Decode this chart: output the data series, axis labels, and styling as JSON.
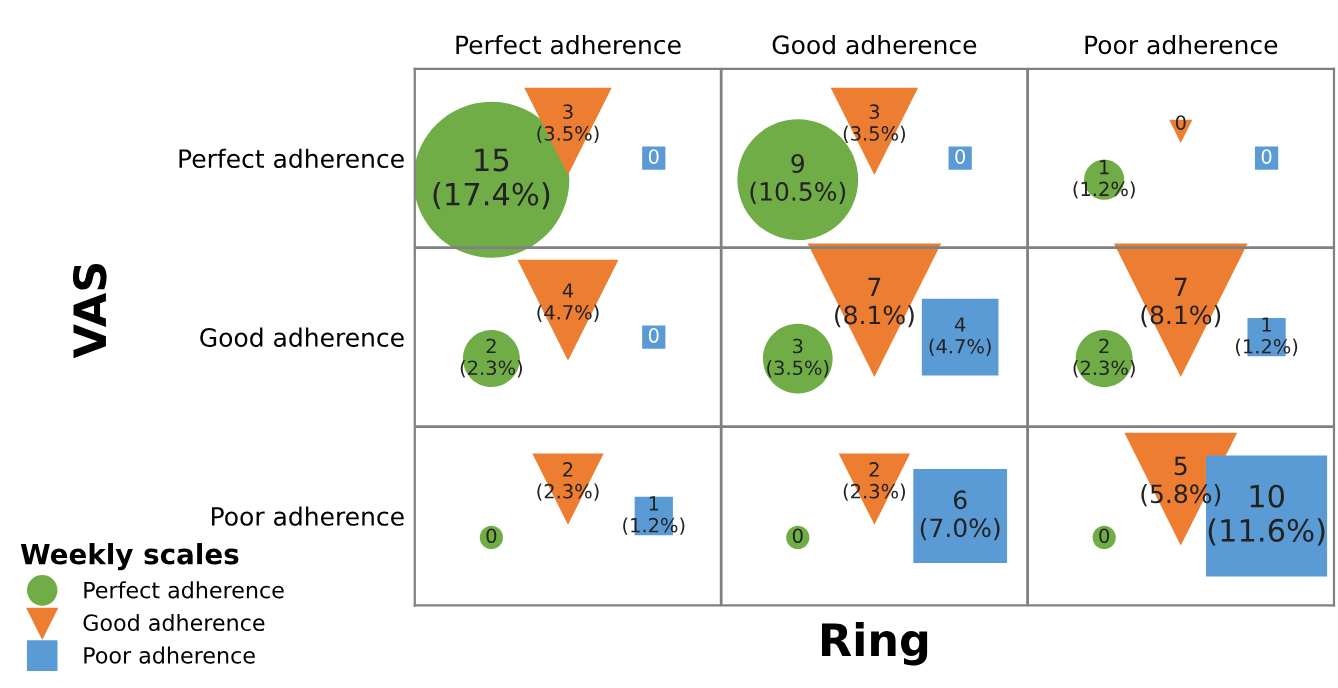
{
  "chart_data": {
    "type": "other",
    "xlabel": "Ring",
    "ylabel": "VAS",
    "legend": "bottom left",
    "legend_title": "Weekly scales",
    "categories": [
      "Perfect adherence",
      "Good adherence",
      "Poor adherence"
    ],
    "y_categories": [
      "Perfect adherence",
      "Good adherence",
      "Poor adherence"
    ],
    "series": [
      {
        "name": "Perfect adherence",
        "color": "#70ad47",
        "marker": "circle",
        "values": [
          15,
          9,
          1
        ],
        "value_labels": [
          "15\n(17.4%)",
          "9\n(10.5%)",
          "1\n(1.2%)"
        ]
      },
      {
        "name": "Good adherence",
        "color": "#ed7d31",
        "marker": "triangle",
        "values": [
          3,
          3,
          0
        ],
        "value_labels": [
          "3\n(3.5%)",
          "3\n(3.5%)",
          "0"
        ]
      },
      {
        "name": "Poor adherence",
        "color": "#5b9bd5",
        "marker": "square",
        "values": [
          0,
          0,
          0
        ],
        "value_labels": [
          "0",
          "0",
          "0"
        ]
      },
      {
        "color": "#70ad47",
        "marker": "circle",
        "values": [
          2,
          3,
          2
        ],
        "value_labels": [
          "2\n(2.3%)",
          "3\n(3.5%)",
          "2\n(2.3%)"
        ]
      },
      {
        "color": "#ed7d31",
        "marker": "triangle",
        "values": [
          4,
          7,
          7
        ],
        "value_labels": [
          "4\n(4.7%)",
          "7\n(8.1%)",
          "7\n(8.1%)"
        ]
      },
      {
        "color": "#5b9bd5",
        "marker": "square",
        "values": [
          0,
          4,
          1
        ],
        "value_labels": [
          "0",
          "4\n(4.7%)",
          "1\n(1.2%)"
        ]
      },
      {
        "color": "#70ad47",
        "marker": "circle",
        "values": [
          0,
          0,
          0
        ],
        "value_labels": [
          "0",
          "0",
          "0"
        ]
      },
      {
        "color": "#ed7d31",
        "marker": "triangle",
        "values": [
          2,
          2,
          5
        ],
        "value_labels": [
          "2\n(2.3%)",
          "2\n(2.3%)",
          "5\n(5.8%)"
        ]
      },
      {
        "color": "#5b9bd5",
        "marker": "square",
        "values": [
          1,
          6,
          10
        ],
        "value_labels": [
          "1\n(1.2%)",
          "6\n(7.0%)",
          "10\n(11.6%)"
        ]
      }
    ]
  }
}
